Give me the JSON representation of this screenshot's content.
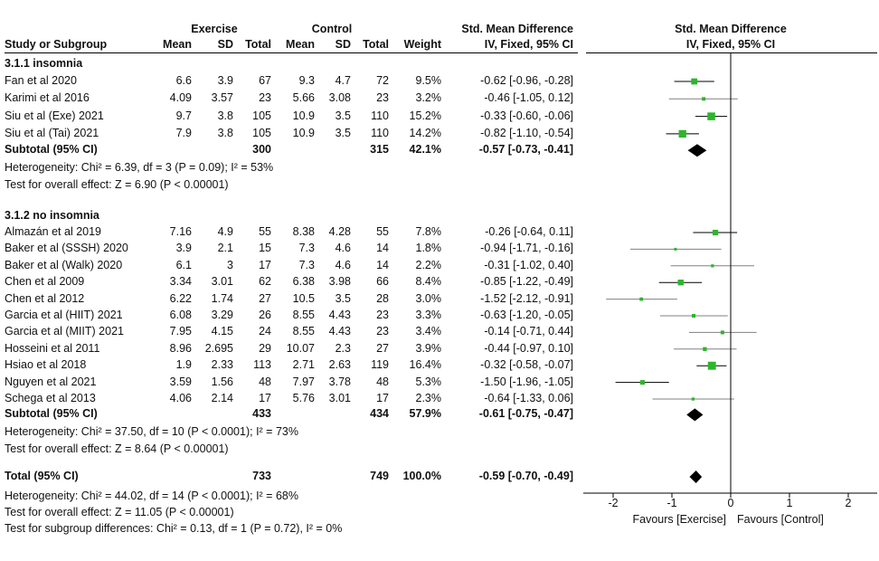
{
  "header": {
    "group1": "Exercise",
    "group2": "Control",
    "smd_text": "Std. Mean Difference",
    "smd_plot": "Std. Mean Difference",
    "col_study": "Study or Subgroup",
    "col_mean1": "Mean",
    "col_sd1": "SD",
    "col_total1": "Total",
    "col_mean2": "Mean",
    "col_sd2": "SD",
    "col_total2": "Total",
    "col_weight": "Weight",
    "col_ci_text": "IV, Fixed, 95% CI",
    "col_ci_plot": "IV, Fixed, 95% CI"
  },
  "chart_data": {
    "type": "forest",
    "xlim": [
      -2,
      2
    ],
    "ticks": [
      "-2",
      "-1",
      "0",
      "1",
      "2"
    ],
    "favours_left": "Favours [Exercise]",
    "favours_right": "Favours [Control]",
    "subgroups": [
      {
        "title": "3.1.1 insomnia",
        "studies": [
          {
            "name": "Fan et al 2020",
            "m1": "6.6",
            "sd1": "3.9",
            "n1": "67",
            "m2": "9.3",
            "sd2": "4.7",
            "n2": "72",
            "weight": "9.5%",
            "ci": "-0.62 [-0.96, -0.28]",
            "est": -0.62,
            "lo": -0.96,
            "hi": -0.28,
            "w": 9.5
          },
          {
            "name": "Karimi et al 2016",
            "m1": "4.09",
            "sd1": "3.57",
            "n1": "23",
            "m2": "5.66",
            "sd2": "3.08",
            "n2": "23",
            "weight": "3.2%",
            "ci": "-0.46 [-1.05, 0.12]",
            "est": -0.46,
            "lo": -1.05,
            "hi": 0.12,
            "w": 3.2
          },
          {
            "name": "Siu et al (Exe) 2021",
            "m1": "9.7",
            "sd1": "3.8",
            "n1": "105",
            "m2": "10.9",
            "sd2": "3.5",
            "n2": "110",
            "weight": "15.2%",
            "ci": "-0.33 [-0.60, -0.06]",
            "est": -0.33,
            "lo": -0.6,
            "hi": -0.06,
            "w": 15.2
          },
          {
            "name": "Siu et al (Tai) 2021",
            "m1": "7.9",
            "sd1": "3.8",
            "n1": "105",
            "m2": "10.9",
            "sd2": "3.5",
            "n2": "110",
            "weight": "14.2%",
            "ci": "-0.82 [-1.10, -0.54]",
            "est": -0.82,
            "lo": -1.1,
            "hi": -0.54,
            "w": 14.2
          }
        ],
        "subtotal": {
          "label": "Subtotal (95% CI)",
          "n1": "300",
          "n2": "315",
          "weight": "42.1%",
          "ci": "-0.57 [-0.73, -0.41]",
          "est": -0.57,
          "lo": -0.73,
          "hi": -0.41
        },
        "heterogeneity": "Heterogeneity: Chi² = 6.39, df = 3 (P = 0.09); I² = 53%",
        "overall": "Test for overall effect: Z = 6.90 (P < 0.00001)"
      },
      {
        "title": "3.1.2 no insomnia",
        "studies": [
          {
            "name": "Almazán et al 2019",
            "m1": "7.16",
            "sd1": "4.9",
            "n1": "55",
            "m2": "8.38",
            "sd2": "4.28",
            "n2": "55",
            "weight": "7.8%",
            "ci": "-0.26 [-0.64, 0.11]",
            "est": -0.26,
            "lo": -0.64,
            "hi": 0.11,
            "w": 7.8
          },
          {
            "name": "Baker et al (SSSH) 2020",
            "m1": "3.9",
            "sd1": "2.1",
            "n1": "15",
            "m2": "7.3",
            "sd2": "4.6",
            "n2": "14",
            "weight": "1.8%",
            "ci": "-0.94 [-1.71, -0.16]",
            "est": -0.94,
            "lo": -1.71,
            "hi": -0.16,
            "w": 1.8
          },
          {
            "name": "Baker et al (Walk) 2020",
            "m1": "6.1",
            "sd1": "3",
            "n1": "17",
            "m2": "7.3",
            "sd2": "4.6",
            "n2": "14",
            "weight": "2.2%",
            "ci": "-0.31 [-1.02, 0.40]",
            "est": -0.31,
            "lo": -1.02,
            "hi": 0.4,
            "w": 2.2
          },
          {
            "name": "Chen et al 2009",
            "m1": "3.34",
            "sd1": "3.01",
            "n1": "62",
            "m2": "6.38",
            "sd2": "3.98",
            "n2": "66",
            "weight": "8.4%",
            "ci": "-0.85 [-1.22, -0.49]",
            "est": -0.85,
            "lo": -1.22,
            "hi": -0.49,
            "w": 8.4
          },
          {
            "name": "Chen et al 2012",
            "m1": "6.22",
            "sd1": "1.74",
            "n1": "27",
            "m2": "10.5",
            "sd2": "3.5",
            "n2": "28",
            "weight": "3.0%",
            "ci": "-1.52 [-2.12, -0.91]",
            "est": -1.52,
            "lo": -2.12,
            "hi": -0.91,
            "w": 3.0
          },
          {
            "name": "Garcia et al (HIIT) 2021",
            "m1": "6.08",
            "sd1": "3.29",
            "n1": "26",
            "m2": "8.55",
            "sd2": "4.43",
            "n2": "23",
            "weight": "3.3%",
            "ci": "-0.63 [-1.20, -0.05]",
            "est": -0.63,
            "lo": -1.2,
            "hi": -0.05,
            "w": 3.3
          },
          {
            "name": "Garcia et al (MIIT) 2021",
            "m1": "7.95",
            "sd1": "4.15",
            "n1": "24",
            "m2": "8.55",
            "sd2": "4.43",
            "n2": "23",
            "weight": "3.4%",
            "ci": "-0.14 [-0.71, 0.44]",
            "est": -0.14,
            "lo": -0.71,
            "hi": 0.44,
            "w": 3.4
          },
          {
            "name": "Hosseini et al 2011",
            "m1": "8.96",
            "sd1": "2.695",
            "n1": "29",
            "m2": "10.07",
            "sd2": "2.3",
            "n2": "27",
            "weight": "3.9%",
            "ci": "-0.44 [-0.97, 0.10]",
            "est": -0.44,
            "lo": -0.97,
            "hi": 0.1,
            "w": 3.9
          },
          {
            "name": "Hsiao et al 2018",
            "m1": "1.9",
            "sd1": "2.33",
            "n1": "113",
            "m2": "2.71",
            "sd2": "2.63",
            "n2": "119",
            "weight": "16.4%",
            "ci": "-0.32 [-0.58, -0.07]",
            "est": -0.32,
            "lo": -0.58,
            "hi": -0.07,
            "w": 16.4
          },
          {
            "name": "Nguyen et al 2021",
            "m1": "3.59",
            "sd1": "1.56",
            "n1": "48",
            "m2": "7.97",
            "sd2": "3.78",
            "n2": "48",
            "weight": "5.3%",
            "ci": "-1.50 [-1.96, -1.05]",
            "est": -1.5,
            "lo": -1.96,
            "hi": -1.05,
            "w": 5.3
          },
          {
            "name": "Schega et al 2013",
            "m1": "4.06",
            "sd1": "2.14",
            "n1": "17",
            "m2": "5.76",
            "sd2": "3.01",
            "n2": "17",
            "weight": "2.3%",
            "ci": "-0.64 [-1.33, 0.06]",
            "est": -0.64,
            "lo": -1.33,
            "hi": 0.06,
            "w": 2.3
          }
        ],
        "subtotal": {
          "label": "Subtotal (95% CI)",
          "n1": "433",
          "n2": "434",
          "weight": "57.9%",
          "ci": "-0.61 [-0.75, -0.47]",
          "est": -0.61,
          "lo": -0.75,
          "hi": -0.47
        },
        "heterogeneity": "Heterogeneity: Chi² = 37.50, df = 10 (P < 0.0001); I² = 73%",
        "overall": "Test for overall effect: Z = 8.64 (P < 0.00001)"
      }
    ],
    "total": {
      "label": "Total (95% CI)",
      "n1": "733",
      "n2": "749",
      "weight": "100.0%",
      "ci": "-0.59 [-0.70, -0.49]",
      "est": -0.59,
      "lo": -0.7,
      "hi": -0.49
    },
    "total_heterogeneity": "Heterogeneity: Chi² = 44.02, df = 14 (P < 0.0001); I² = 68%",
    "total_overall": "Test for overall effect: Z = 11.05 (P < 0.00001)",
    "subgroup_diff": "Test for subgroup differences: Chi² = 0.13, df = 1 (P = 0.72), I² = 0%",
    "colors": {
      "marker": "#2db52d",
      "diamond": "#000000",
      "ci_line_major": "#000000",
      "ci_line_minor": "#808080"
    }
  }
}
